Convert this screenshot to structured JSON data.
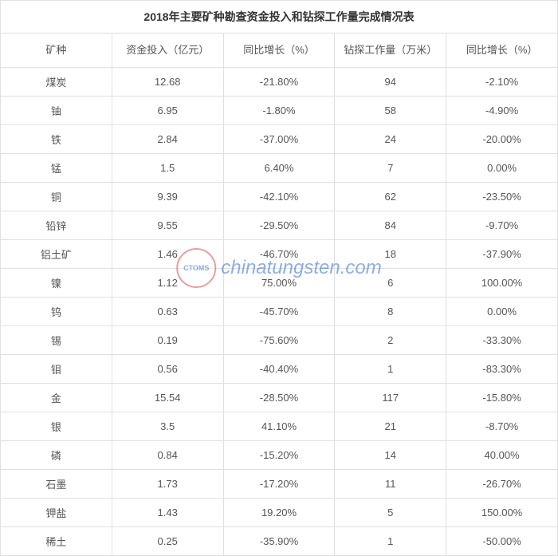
{
  "table": {
    "title": "2018年主要矿种勘查资金投入和钻探工作量完成情况表",
    "columns": [
      {
        "label": "矿种",
        "width": "15%"
      },
      {
        "label": "资金投入（亿元）",
        "width": "21%"
      },
      {
        "label": "同比增长（%）",
        "width": "21%"
      },
      {
        "label": "钻探工作量（万米）",
        "width": "21%"
      },
      {
        "label": "同比增长（%）",
        "width": "22%"
      }
    ],
    "rows": [
      [
        "煤炭",
        "12.68",
        "-21.80%",
        "94",
        "-2.10%"
      ],
      [
        "铀",
        "6.95",
        "-1.80%",
        "58",
        "-4.90%"
      ],
      [
        "铁",
        "2.84",
        "-37.00%",
        "24",
        "-20.00%"
      ],
      [
        "锰",
        "1.5",
        "6.40%",
        "7",
        "0.00%"
      ],
      [
        "铜",
        "9.39",
        "-42.10%",
        "62",
        "-23.50%"
      ],
      [
        "铅锌",
        "9.55",
        "-29.50%",
        "84",
        "-9.70%"
      ],
      [
        "铝土矿",
        "1.46",
        "-46.70%",
        "18",
        "-37.90%"
      ],
      [
        "镍",
        "1.12",
        "75.00%",
        "6",
        "100.00%"
      ],
      [
        "钨",
        "0.63",
        "-45.70%",
        "8",
        "0.00%"
      ],
      [
        "锡",
        "0.19",
        "-75.60%",
        "2",
        "-33.30%"
      ],
      [
        "钼",
        "0.56",
        "-40.40%",
        "1",
        "-83.30%"
      ],
      [
        "金",
        "15.54",
        "-28.50%",
        "117",
        "-15.80%"
      ],
      [
        "银",
        "3.5",
        "41.10%",
        "21",
        "-8.70%"
      ],
      [
        "磷",
        "0.84",
        "-15.20%",
        "14",
        "40.00%"
      ],
      [
        "石墨",
        "1.73",
        "-17.20%",
        "11",
        "-26.70%"
      ],
      [
        "钾盐",
        "1.43",
        "19.20%",
        "5",
        "150.00%"
      ],
      [
        "稀土",
        "0.25",
        "-35.90%",
        "1",
        "-50.00%"
      ]
    ],
    "title_fontsize": 14,
    "header_fontsize": 13,
    "cell_fontsize": 13,
    "border_color": "#e0e0e0",
    "text_color": "#555555",
    "title_color": "#333333",
    "background_color": "#ffffff"
  },
  "watermark": {
    "text": "chinatungsten.com",
    "logo_text": "CTOMS",
    "logo_border_color": "#d04040",
    "text_color": "#2060d0"
  }
}
